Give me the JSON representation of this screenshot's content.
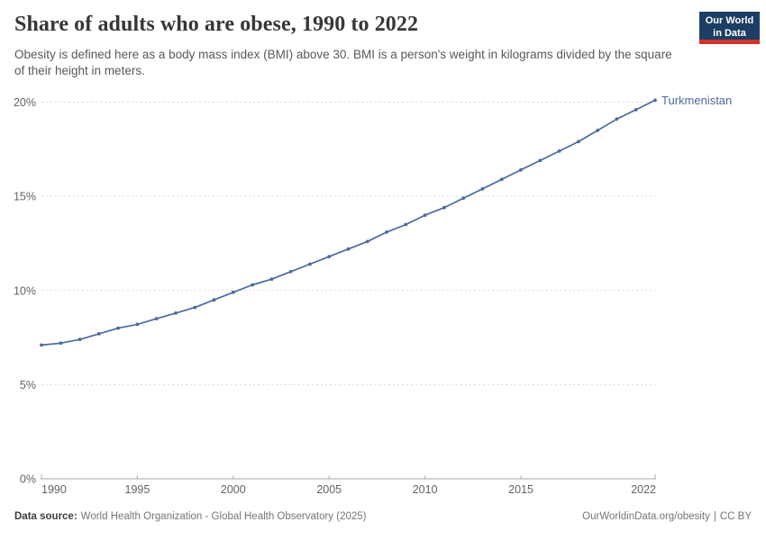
{
  "header": {
    "title": "Share of adults who are obese, 1990 to 2022",
    "subtitle": "Obesity is defined here as a body mass index (BMI) above 30. BMI is a person's weight in kilograms divided by the square of their height in meters.",
    "logo": {
      "line1": "Our World",
      "line2": "in Data",
      "bg_color": "#1d3d63",
      "accent_color": "#d0352c"
    }
  },
  "chart_data": {
    "type": "line",
    "title": "Share of adults who are obese, 1990 to 2022",
    "xlabel": "",
    "ylabel": "",
    "unit": "%",
    "xlim": [
      1990,
      2022
    ],
    "ylim": [
      0,
      20
    ],
    "grid": "horizontal-dashed",
    "legend_position": "end-of-line",
    "x": [
      1990,
      1991,
      1992,
      1993,
      1994,
      1995,
      1996,
      1997,
      1998,
      1999,
      2000,
      2001,
      2002,
      2003,
      2004,
      2005,
      2006,
      2007,
      2008,
      2009,
      2010,
      2011,
      2012,
      2013,
      2014,
      2015,
      2016,
      2017,
      2018,
      2019,
      2020,
      2021,
      2022
    ],
    "series": [
      {
        "name": "Turkmenistan",
        "color": "#4c6a9c",
        "values": [
          7.1,
          7.2,
          7.4,
          7.7,
          8.0,
          8.2,
          8.5,
          8.8,
          9.1,
          9.5,
          9.9,
          10.3,
          10.6,
          11.0,
          11.4,
          11.8,
          12.2,
          12.6,
          13.1,
          13.5,
          14.0,
          14.4,
          14.9,
          15.4,
          15.9,
          16.4,
          16.9,
          17.4,
          17.9,
          18.5,
          19.1,
          19.6,
          20.1
        ]
      }
    ],
    "yticks": [
      {
        "value": 0,
        "label": "0%"
      },
      {
        "value": 5,
        "label": "5%"
      },
      {
        "value": 10,
        "label": "10%"
      },
      {
        "value": 15,
        "label": "15%"
      },
      {
        "value": 20,
        "label": "20%"
      }
    ],
    "xticks": [
      {
        "value": 1990,
        "label": "1990"
      },
      {
        "value": 1995,
        "label": "1995"
      },
      {
        "value": 2000,
        "label": "2000"
      },
      {
        "value": 2005,
        "label": "2005"
      },
      {
        "value": 2010,
        "label": "2010"
      },
      {
        "value": 2015,
        "label": "2015"
      },
      {
        "value": 2022,
        "label": "2022"
      }
    ]
  },
  "footer": {
    "datasource_label": "Data source:",
    "datasource_text": "World Health Organization - Global Health Observatory (2025)",
    "link_text": "OurWorldinData.org/obesity",
    "separator": "|",
    "license_text": "CC BY"
  }
}
